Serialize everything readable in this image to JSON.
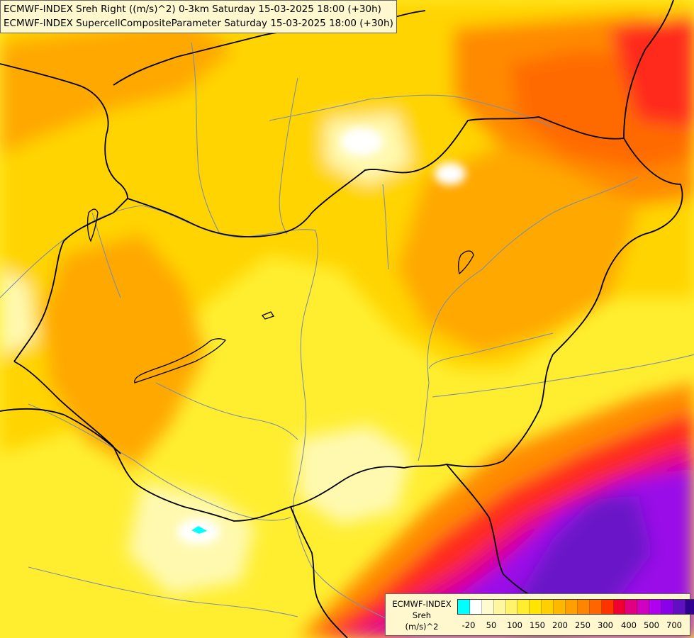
{
  "title": {
    "line1": "ECMWF-INDEX Sreh Right ((m/s)^2) 0-3km Saturday 15-03-2025 18:00 (+30h)",
    "line2": "ECMWF-INDEX SupercellCompositeParameter Saturday 15-03-2025 18:00 (+30h)"
  },
  "legend": {
    "line1": "ECMWF-INDEX",
    "line2": "Sreh",
    "line3": "(m/s)^2",
    "colors": [
      "#00ffff",
      "#ffffff",
      "#fffbd0",
      "#fff7a0",
      "#fff36a",
      "#ffee30",
      "#ffe500",
      "#ffd000",
      "#ffb800",
      "#ffa000",
      "#ff8500",
      "#ff6600",
      "#ff3300",
      "#f00030",
      "#e00080",
      "#d000c0",
      "#b000f0",
      "#8a00e8",
      "#6010c0",
      "#300090"
    ],
    "tick_labels": [
      "-20",
      "50",
      "100",
      "150",
      "200",
      "250",
      "300",
      "400",
      "500",
      "700"
    ]
  },
  "map": {
    "field_colors": {
      "pale": "#fff9b0",
      "yellow": "#ffee30",
      "gold": "#ffd400",
      "orange": "#ffa800",
      "dark_orange": "#ff7a00",
      "red": "#ff2a1a",
      "magenta": "#e0008a",
      "violet": "#9a10e8",
      "deep_violet": "#6a18c8",
      "cyan": "#00ffff"
    },
    "border_color": "#000000",
    "river_color": "#7f8fa6"
  }
}
